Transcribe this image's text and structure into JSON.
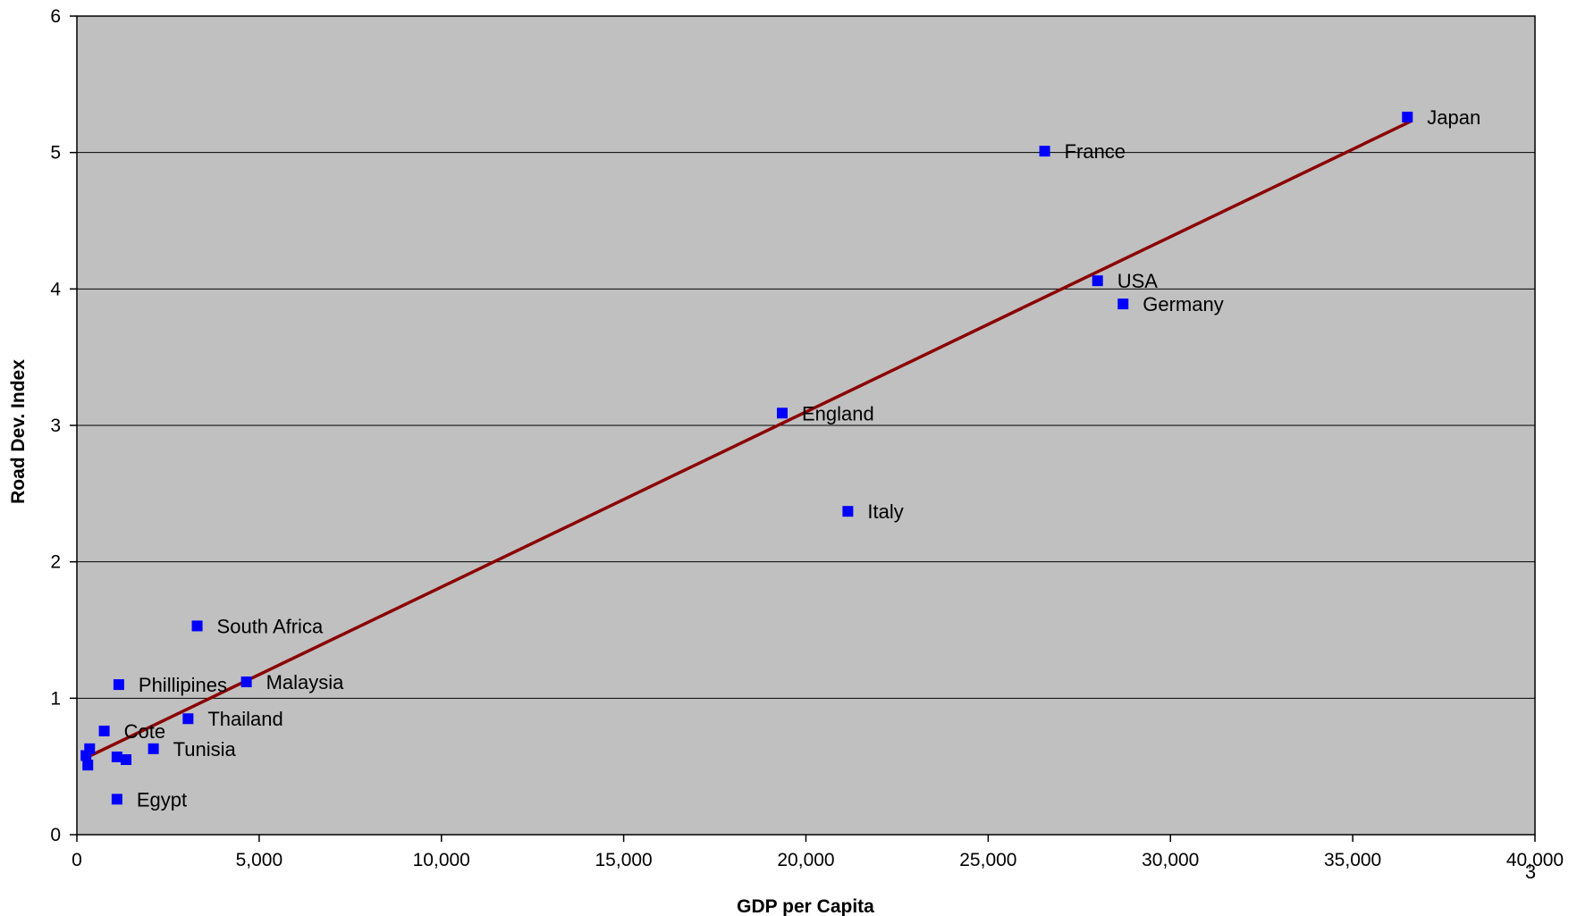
{
  "chart_data": {
    "type": "scatter",
    "title": "",
    "xlabel": "GDP per Capita",
    "ylabel": "Road Dev. Index",
    "xlim": [
      0,
      40000
    ],
    "ylim": [
      0,
      6
    ],
    "xticks": [
      0,
      5000,
      10000,
      15000,
      20000,
      25000,
      30000,
      35000,
      40000
    ],
    "yticks": [
      0,
      1,
      2,
      3,
      4,
      5,
      6
    ],
    "xtick_labels": [
      "0",
      "5,000",
      "10,000",
      "15,000",
      "20,000",
      "25,000",
      "30,000",
      "35,000",
      "40,000"
    ],
    "ytick_labels": [
      "0",
      "1",
      "2",
      "3",
      "4",
      "5",
      "6"
    ],
    "grid": "horizontal",
    "background": "#c0c0c0",
    "marker_color": "#0000ff",
    "trendline_color": "#8b0000",
    "points": [
      {
        "x": 36500,
        "y": 5.26,
        "label": "Japan"
      },
      {
        "x": 26550,
        "y": 5.01,
        "label": "France"
      },
      {
        "x": 28000,
        "y": 4.06,
        "label": "USA"
      },
      {
        "x": 28700,
        "y": 3.89,
        "label": "Germany"
      },
      {
        "x": 19350,
        "y": 3.09,
        "label": "England"
      },
      {
        "x": 21150,
        "y": 2.37,
        "label": "Italy"
      },
      {
        "x": 3300,
        "y": 1.53,
        "label": "South Africa"
      },
      {
        "x": 4650,
        "y": 1.12,
        "label": "Malaysia"
      },
      {
        "x": 1150,
        "y": 1.1,
        "label": "Phillipines"
      },
      {
        "x": 3050,
        "y": 0.85,
        "label": "Thailand"
      },
      {
        "x": 750,
        "y": 0.76,
        "label": "Cote"
      },
      {
        "x": 2100,
        "y": 0.63,
        "label": "Tunisia"
      },
      {
        "x": 1100,
        "y": 0.26,
        "label": "Egypt"
      },
      {
        "x": 250,
        "y": 0.58,
        "label": ""
      },
      {
        "x": 350,
        "y": 0.63,
        "label": ""
      },
      {
        "x": 300,
        "y": 0.51,
        "label": ""
      },
      {
        "x": 1100,
        "y": 0.57,
        "label": ""
      },
      {
        "x": 1350,
        "y": 0.55,
        "label": ""
      }
    ],
    "trendline": [
      {
        "x": 300,
        "y": 0.57
      },
      {
        "x": 36600,
        "y": 5.23
      }
    ]
  },
  "page_number": "3"
}
